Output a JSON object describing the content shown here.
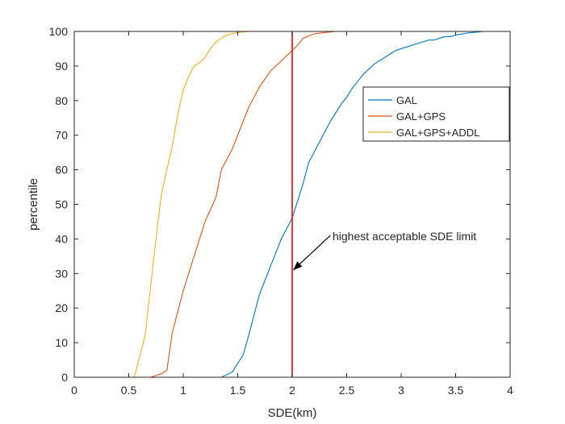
{
  "chart_data": {
    "type": "line",
    "xlabel": "SDE(km)",
    "ylabel": "percentile",
    "xlim": [
      0,
      4
    ],
    "ylim": [
      0,
      100
    ],
    "xticks": [
      0,
      0.5,
      1,
      1.5,
      2,
      2.5,
      3,
      3.5,
      4
    ],
    "yticks": [
      0,
      10,
      20,
      30,
      40,
      50,
      60,
      70,
      80,
      90,
      100
    ],
    "xtick_labels": [
      "0",
      "0.5",
      "1",
      "1.5",
      "2",
      "2.5",
      "3",
      "3.5",
      "4"
    ],
    "ytick_labels": [
      "0",
      "10",
      "20",
      "30",
      "40",
      "50",
      "60",
      "70",
      "80",
      "90",
      "100"
    ],
    "grid": false,
    "legend_position": "top-right",
    "series": [
      {
        "name": "GAL",
        "color": "#0072BD",
        "x": [
          0,
          1.35,
          1.45,
          1.55,
          1.6,
          1.65,
          1.7,
          1.75,
          1.8,
          1.85,
          1.9,
          1.95,
          2.0,
          2.05,
          2.1,
          2.15,
          2.2,
          2.25,
          2.3,
          2.35,
          2.4,
          2.45,
          2.5,
          2.55,
          2.6,
          2.65,
          2.7,
          2.75,
          2.8,
          2.85,
          2.9,
          2.95,
          3.0,
          3.05,
          3.1,
          3.15,
          3.2,
          3.25,
          3.3,
          3.35,
          3.4,
          3.45,
          3.5,
          3.55,
          3.6,
          3.65,
          3.7,
          3.75,
          4.0
        ],
        "y": [
          0,
          0,
          1.5,
          6.5,
          12,
          18,
          24,
          28,
          32,
          36,
          40,
          43,
          46,
          51,
          56,
          62,
          65,
          68,
          71,
          74,
          76.5,
          79,
          81,
          83.5,
          85.5,
          87.5,
          89,
          90.5,
          91.5,
          92.5,
          93.5,
          94.5,
          95,
          95.5,
          96,
          96.5,
          97,
          97.5,
          97.5,
          98,
          98.5,
          98.5,
          99,
          99.2,
          99.5,
          99.7,
          99.8,
          100,
          100
        ]
      },
      {
        "name": "GAL+GPS",
        "color": "#D95319",
        "x": [
          0,
          0.7,
          0.8,
          0.85,
          0.9,
          1.0,
          1.1,
          1.2,
          1.3,
          1.35,
          1.45,
          1.5,
          1.6,
          1.7,
          1.8,
          1.9,
          2.0,
          2.05,
          2.1,
          2.2,
          2.3,
          2.4,
          4.0
        ],
        "y": [
          0,
          0,
          1,
          2,
          13,
          25,
          35,
          45,
          52,
          60,
          66,
          70,
          78,
          84,
          88.5,
          91.5,
          94.5,
          96,
          98,
          99.3,
          99.7,
          100,
          100
        ]
      },
      {
        "name": "GAL+GPS+ADDL",
        "color": "#EDB120",
        "x": [
          0,
          0.55,
          0.65,
          0.7,
          0.75,
          0.8,
          0.9,
          0.95,
          1.0,
          1.05,
          1.1,
          1.15,
          1.2,
          1.25,
          1.3,
          1.4,
          1.5,
          1.6,
          1.7,
          4.0
        ],
        "y": [
          0,
          0,
          12,
          26,
          40,
          53,
          67,
          76,
          83,
          87,
          90,
          91,
          92.5,
          95,
          97,
          99,
          99.7,
          100,
          100,
          100
        ]
      },
      {
        "name": "",
        "color": "#FF0000",
        "x": [
          2.0,
          2.0
        ],
        "y": [
          0,
          100
        ]
      }
    ],
    "annotation": {
      "text": "highest acceptable SDE limit",
      "arrow_from": [
        2.35,
        41
      ],
      "arrow_to": [
        2.01,
        31
      ]
    }
  }
}
